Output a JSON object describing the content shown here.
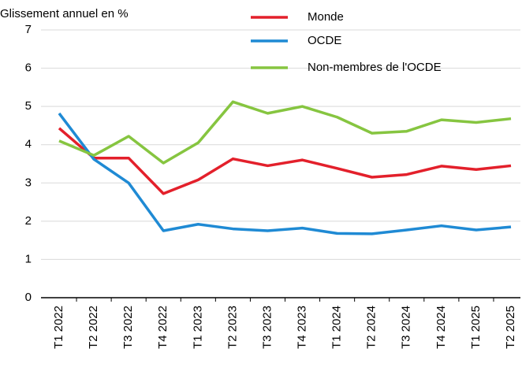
{
  "chart_data": {
    "type": "line",
    "y_axis_label": "Glissement annuel en %",
    "categories": [
      "T1 2022",
      "T2 2022",
      "T3 2022",
      "T4 2022",
      "T1 2023",
      "T2 2023",
      "T3 2023",
      "T4 2023",
      "T1 2024",
      "T2 2024",
      "T3 2024",
      "T4 2024",
      "T1 2025",
      "T2 2025"
    ],
    "series": [
      {
        "name": "Monde",
        "color": "#e3202b",
        "values": [
          4.43,
          3.65,
          3.65,
          2.72,
          3.08,
          3.63,
          3.45,
          3.6,
          3.38,
          3.15,
          3.22,
          3.44,
          3.35,
          3.45
        ]
      },
      {
        "name": "OCDE",
        "color": "#1f8ad4",
        "values": [
          4.82,
          3.62,
          3.0,
          1.75,
          1.92,
          1.8,
          1.75,
          1.82,
          1.68,
          1.67,
          1.77,
          1.88,
          1.77,
          1.85
        ]
      },
      {
        "name": "Non-membres de l'OCDE",
        "color": "#86c540",
        "values": [
          4.1,
          3.72,
          4.22,
          3.52,
          4.05,
          5.12,
          4.82,
          5.0,
          4.72,
          4.3,
          4.35,
          4.65,
          4.58,
          4.68
        ]
      }
    ],
    "ylim": [
      0,
      7
    ],
    "yticks": [
      0,
      1,
      2,
      3,
      4,
      5,
      6,
      7
    ],
    "grid": true
  }
}
